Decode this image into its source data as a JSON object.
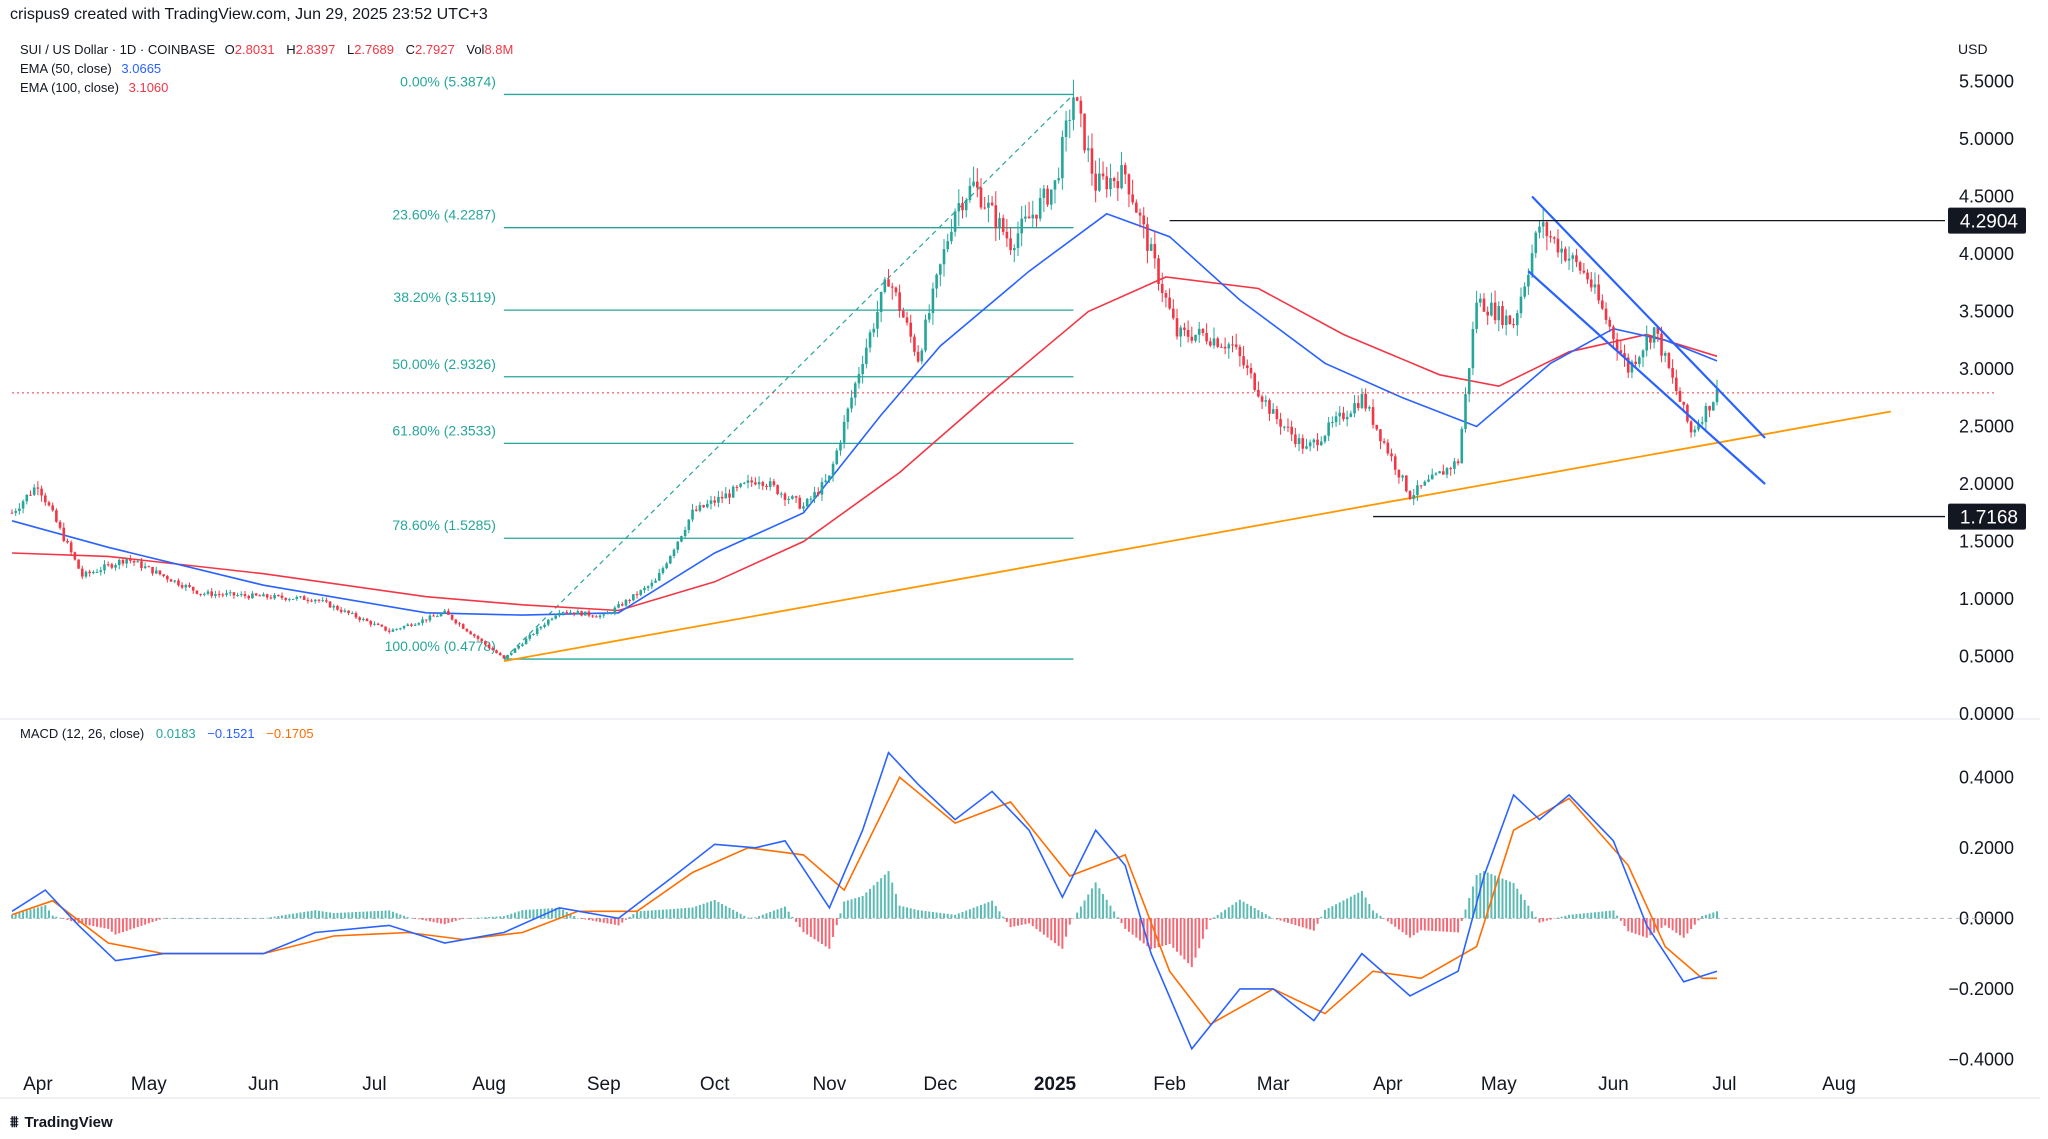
{
  "header": {
    "created_by": "crispus9 created with TradingView.com, Jun 29, 2025 23:52 UTC+3"
  },
  "legend": {
    "symbol": "SUI / US Dollar · 1D · COINBASE",
    "o_label": "O",
    "o_value": "2.8031",
    "h_label": "H",
    "h_value": "2.8397",
    "l_label": "L",
    "l_value": "2.7689",
    "c_label": "C",
    "c_value": "2.7927",
    "vol_label": "Vol",
    "vol_value": "8.8M",
    "ema50_label": "EMA (50, close)",
    "ema50_value": "3.0665",
    "ema50_color": "#2962ff",
    "ema100_label": "EMA (100, close)",
    "ema100_value": "3.1060",
    "ema100_color": "#f23645"
  },
  "macd_legend": {
    "label": "MACD (12, 26, close)",
    "hist_value": "0.0183",
    "hist_color": "#26a69a",
    "macd_value": "−0.1521",
    "macd_color": "#2962ff",
    "signal_value": "−0.1705",
    "signal_color": "#ff6d00"
  },
  "currency": "USD",
  "footer": {
    "brand": "TradingView",
    "logo_icon": "tradingview-logo-icon"
  },
  "colors": {
    "up": "#26a69a",
    "down": "#f23645",
    "fib": "#26a69a",
    "trend": "#ff9800",
    "channel": "#2962ff",
    "level": "#131722",
    "price_line": "#f23645"
  },
  "chart_data": [
    {
      "type": "candlestick",
      "title": "SUI / US Dollar · 1D · COINBASE",
      "x_range": [
        "2024-03-25",
        "2025-08-31"
      ],
      "x_ticks": [
        "Apr",
        "May",
        "Jun",
        "Jul",
        "Aug",
        "Sep",
        "Oct",
        "Nov",
        "Dec",
        "2025",
        "Feb",
        "Mar",
        "Apr",
        "May",
        "Jun",
        "Jul",
        "Aug"
      ],
      "y_ticks": [
        "5.5000",
        "5.0000",
        "4.5000",
        "4.0000",
        "3.5000",
        "3.0000",
        "2.5000",
        "2.0000",
        "1.5000",
        "1.0000",
        "0.5000",
        "0.0000"
      ],
      "ylim": [
        0,
        5.6
      ],
      "price_anchors": [
        [
          "2024-03-25",
          1.75
        ],
        [
          "2024-04-01",
          2.0
        ],
        [
          "2024-04-13",
          1.2
        ],
        [
          "2024-04-25",
          1.35
        ],
        [
          "2024-05-15",
          1.05
        ],
        [
          "2024-06-01",
          1.02
        ],
        [
          "2024-06-15",
          1.0
        ],
        [
          "2024-07-05",
          0.72
        ],
        [
          "2024-07-20",
          0.88
        ],
        [
          "2024-08-05",
          0.48
        ],
        [
          "2024-08-20",
          0.9
        ],
        [
          "2024-09-01",
          0.85
        ],
        [
          "2024-09-15",
          1.15
        ],
        [
          "2024-09-25",
          1.75
        ],
        [
          "2024-10-13",
          2.05
        ],
        [
          "2024-10-25",
          1.8
        ],
        [
          "2024-11-01",
          2.05
        ],
        [
          "2024-11-10",
          3.1
        ],
        [
          "2024-11-17",
          3.8
        ],
        [
          "2024-11-25",
          3.1
        ],
        [
          "2024-12-05",
          4.4
        ],
        [
          "2024-12-10",
          4.6
        ],
        [
          "2024-12-20",
          4.1
        ],
        [
          "2025-01-01",
          4.6
        ],
        [
          "2025-01-06",
          5.38
        ],
        [
          "2025-01-12",
          4.6
        ],
        [
          "2025-01-20",
          4.7
        ],
        [
          "2025-01-27",
          4.0
        ],
        [
          "2025-02-03",
          3.3
        ],
        [
          "2025-02-10",
          3.3
        ],
        [
          "2025-02-18",
          3.2
        ],
        [
          "2025-03-01",
          2.6
        ],
        [
          "2025-03-10",
          2.3
        ],
        [
          "2025-03-25",
          2.75
        ],
        [
          "2025-04-07",
          1.9
        ],
        [
          "2025-04-20",
          2.2
        ],
        [
          "2025-04-25",
          3.6
        ],
        [
          "2025-05-05",
          3.4
        ],
        [
          "2025-05-12",
          4.25
        ],
        [
          "2025-05-25",
          3.8
        ],
        [
          "2025-06-05",
          3.0
        ],
        [
          "2025-06-12",
          3.35
        ],
        [
          "2025-06-22",
          2.45
        ],
        [
          "2025-06-29",
          2.79
        ]
      ],
      "ema50": [
        [
          "2024-03-25",
          1.68
        ],
        [
          "2024-04-20",
          1.45
        ],
        [
          "2024-06-01",
          1.12
        ],
        [
          "2024-07-15",
          0.88
        ],
        [
          "2024-08-10",
          0.86
        ],
        [
          "2024-09-05",
          0.88
        ],
        [
          "2024-10-01",
          1.4
        ],
        [
          "2024-10-25",
          1.75
        ],
        [
          "2024-11-15",
          2.6
        ],
        [
          "2024-12-01",
          3.2
        ],
        [
          "2024-12-25",
          3.85
        ],
        [
          "2025-01-15",
          4.35
        ],
        [
          "2025-02-01",
          4.15
        ],
        [
          "2025-02-20",
          3.6
        ],
        [
          "2025-03-15",
          3.05
        ],
        [
          "2025-04-05",
          2.75
        ],
        [
          "2025-04-25",
          2.5
        ],
        [
          "2025-05-15",
          3.05
        ],
        [
          "2025-06-01",
          3.35
        ],
        [
          "2025-06-15",
          3.25
        ],
        [
          "2025-06-29",
          3.07
        ]
      ],
      "ema100": [
        [
          "2024-03-25",
          1.4
        ],
        [
          "2024-04-20",
          1.37
        ],
        [
          "2024-06-01",
          1.22
        ],
        [
          "2024-07-15",
          1.02
        ],
        [
          "2024-08-10",
          0.95
        ],
        [
          "2024-09-05",
          0.9
        ],
        [
          "2024-10-01",
          1.15
        ],
        [
          "2024-10-25",
          1.5
        ],
        [
          "2024-11-20",
          2.1
        ],
        [
          "2024-12-15",
          2.8
        ],
        [
          "2025-01-10",
          3.5
        ],
        [
          "2025-01-31",
          3.8
        ],
        [
          "2025-02-25",
          3.7
        ],
        [
          "2025-03-20",
          3.3
        ],
        [
          "2025-04-15",
          2.95
        ],
        [
          "2025-05-01",
          2.85
        ],
        [
          "2025-05-20",
          3.15
        ],
        [
          "2025-06-10",
          3.3
        ],
        [
          "2025-06-29",
          3.11
        ]
      ],
      "fibonacci": [
        {
          "label": "0.00% (5.3874)",
          "price": 5.3874
        },
        {
          "label": "23.60% (4.2287)",
          "price": 4.2287
        },
        {
          "label": "38.20% (3.5119)",
          "price": 3.5119
        },
        {
          "label": "50.00% (2.9326)",
          "price": 2.9326
        },
        {
          "label": "61.80% (2.3533)",
          "price": 2.3533
        },
        {
          "label": "78.60% (1.5285)",
          "price": 1.5285
        },
        {
          "label": "100.00% (0.4778)",
          "price": 0.4778
        }
      ],
      "fib_range": [
        "2024-08-05",
        "2025-01-06"
      ],
      "horizontal_levels": [
        {
          "label": "4.2904",
          "price": 4.2904,
          "from": "2025-02-01"
        },
        {
          "label": "1.7168",
          "price": 1.7168,
          "from": "2025-03-28"
        }
      ],
      "current_price": 2.7927,
      "trendline": [
        [
          "2024-08-05",
          0.46
        ],
        [
          "2025-08-15",
          2.63
        ]
      ],
      "channel_upper": [
        [
          "2025-05-10",
          4.5
        ],
        [
          "2025-07-12",
          2.4
        ]
      ],
      "channel_lower": [
        [
          "2025-05-09",
          3.85
        ],
        [
          "2025-07-12",
          2.0
        ]
      ]
    },
    {
      "type": "macd",
      "title": "MACD (12, 26, close)",
      "y_ticks": [
        "0.4000",
        "0.2000",
        "0.0000",
        "−0.2000",
        "−0.4000"
      ],
      "ylim": [
        -0.43,
        0.5
      ],
      "macd": [
        [
          "2024-03-25",
          0.02
        ],
        [
          "2024-04-03",
          0.08
        ],
        [
          "2024-04-12",
          -0.02
        ],
        [
          "2024-04-22",
          -0.12
        ],
        [
          "2024-05-05",
          -0.1
        ],
        [
          "2024-06-01",
          -0.1
        ],
        [
          "2024-06-15",
          -0.04
        ],
        [
          "2024-07-05",
          -0.02
        ],
        [
          "2024-07-20",
          -0.07
        ],
        [
          "2024-08-05",
          -0.04
        ],
        [
          "2024-08-20",
          0.03
        ],
        [
          "2024-09-05",
          0.0
        ],
        [
          "2024-09-20",
          0.12
        ],
        [
          "2024-10-01",
          0.21
        ],
        [
          "2024-10-12",
          0.2
        ],
        [
          "2024-10-20",
          0.22
        ],
        [
          "2024-11-01",
          0.03
        ],
        [
          "2024-11-10",
          0.25
        ],
        [
          "2024-11-17",
          0.47
        ],
        [
          "2024-11-25",
          0.38
        ],
        [
          "2024-12-05",
          0.28
        ],
        [
          "2024-12-15",
          0.36
        ],
        [
          "2024-12-25",
          0.25
        ],
        [
          "2025-01-03",
          0.06
        ],
        [
          "2025-01-12",
          0.25
        ],
        [
          "2025-01-20",
          0.15
        ],
        [
          "2025-01-27",
          -0.1
        ],
        [
          "2025-02-07",
          -0.37
        ],
        [
          "2025-02-20",
          -0.2
        ],
        [
          "2025-03-01",
          -0.2
        ],
        [
          "2025-03-12",
          -0.29
        ],
        [
          "2025-03-25",
          -0.1
        ],
        [
          "2025-04-07",
          -0.22
        ],
        [
          "2025-04-20",
          -0.15
        ],
        [
          "2025-04-27",
          0.12
        ],
        [
          "2025-05-05",
          0.35
        ],
        [
          "2025-05-12",
          0.28
        ],
        [
          "2025-05-20",
          0.35
        ],
        [
          "2025-06-01",
          0.22
        ],
        [
          "2025-06-10",
          -0.02
        ],
        [
          "2025-06-20",
          -0.18
        ],
        [
          "2025-06-29",
          -0.15
        ]
      ],
      "signal": [
        [
          "2024-03-25",
          0.01
        ],
        [
          "2024-04-05",
          0.05
        ],
        [
          "2024-04-20",
          -0.07
        ],
        [
          "2024-05-05",
          -0.1
        ],
        [
          "2024-06-01",
          -0.1
        ],
        [
          "2024-06-20",
          -0.05
        ],
        [
          "2024-07-10",
          -0.04
        ],
        [
          "2024-07-25",
          -0.06
        ],
        [
          "2024-08-10",
          -0.04
        ],
        [
          "2024-08-25",
          0.02
        ],
        [
          "2024-09-10",
          0.02
        ],
        [
          "2024-09-25",
          0.13
        ],
        [
          "2024-10-10",
          0.2
        ],
        [
          "2024-10-25",
          0.18
        ],
        [
          "2024-11-05",
          0.08
        ],
        [
          "2024-11-20",
          0.4
        ],
        [
          "2024-12-05",
          0.27
        ],
        [
          "2024-12-20",
          0.33
        ],
        [
          "2025-01-05",
          0.12
        ],
        [
          "2025-01-20",
          0.18
        ],
        [
          "2025-02-01",
          -0.15
        ],
        [
          "2025-02-12",
          -0.3
        ],
        [
          "2025-03-01",
          -0.2
        ],
        [
          "2025-03-15",
          -0.27
        ],
        [
          "2025-03-28",
          -0.15
        ],
        [
          "2025-04-10",
          -0.17
        ],
        [
          "2025-04-25",
          -0.08
        ],
        [
          "2025-05-05",
          0.25
        ],
        [
          "2025-05-20",
          0.34
        ],
        [
          "2025-06-05",
          0.15
        ],
        [
          "2025-06-15",
          -0.08
        ],
        [
          "2025-06-25",
          -0.17
        ],
        [
          "2025-06-29",
          -0.17
        ]
      ]
    }
  ]
}
